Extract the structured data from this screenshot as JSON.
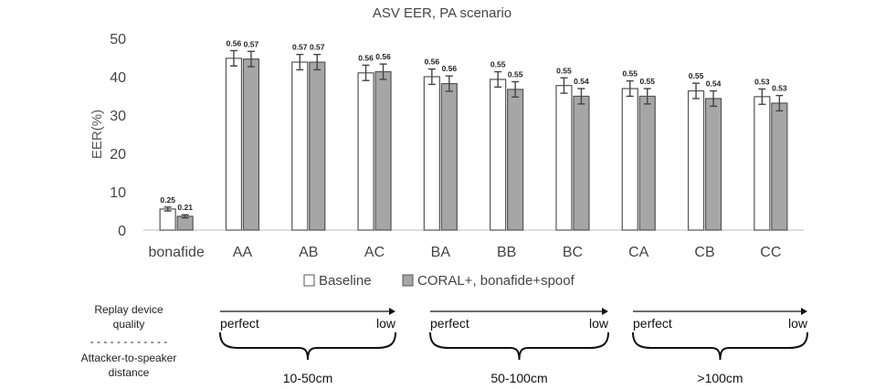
{
  "chart_data": {
    "type": "bar",
    "title": "ASV EER, PA scenario",
    "xlabel": "",
    "ylabel": "EER(%)",
    "ylim": [
      0,
      50
    ],
    "yticks": [
      0,
      10,
      20,
      30,
      40,
      50
    ],
    "grid": false,
    "legend_position": "bottom",
    "categories": [
      "bonafide",
      "AA",
      "AB",
      "AC",
      "BA",
      "BB",
      "BC",
      "CA",
      "CB",
      "CC"
    ],
    "series": [
      {
        "name": "Baseline",
        "color": "#ffffff",
        "values": [
          5.5,
          44.8,
          43.8,
          41.0,
          40.0,
          39.3,
          37.7,
          36.9,
          36.3,
          34.8
        ],
        "errors": [
          0.5,
          2.0,
          2.0,
          2.0,
          2.0,
          2.0,
          2.0,
          2.0,
          2.0,
          2.0
        ],
        "labels": [
          "0.25",
          "0.56",
          "0.57",
          "0.56",
          "0.56",
          "0.55",
          "0.55",
          "0.55",
          "0.55",
          "0.53"
        ]
      },
      {
        "name": "CORAL+, bonafide+spoof",
        "color": "#a6a6a6",
        "values": [
          3.6,
          44.6,
          43.8,
          41.3,
          38.2,
          36.7,
          34.9,
          34.9,
          34.3,
          33.1
        ],
        "errors": [
          0.4,
          2.0,
          2.0,
          2.0,
          2.0,
          2.0,
          2.0,
          2.0,
          2.0,
          2.0
        ],
        "labels": [
          "0.21",
          "0.57",
          "0.57",
          "0.56",
          "0.56",
          "0.55",
          "0.54",
          "0.55",
          "0.54",
          "0.53"
        ]
      }
    ]
  },
  "annotation": {
    "row_label_top": [
      "Replay device",
      "quality"
    ],
    "divider": "- - - - - - - - - - - -",
    "row_label_bottom": [
      "Attacker-to-speaker",
      "distance"
    ],
    "groups": [
      {
        "start": "perfect",
        "end": "low",
        "distance": "10-50cm"
      },
      {
        "start": "perfect",
        "end": "low",
        "distance": "50-100cm"
      },
      {
        "start": "perfect",
        "end": "low",
        "distance": ">100cm"
      }
    ]
  }
}
